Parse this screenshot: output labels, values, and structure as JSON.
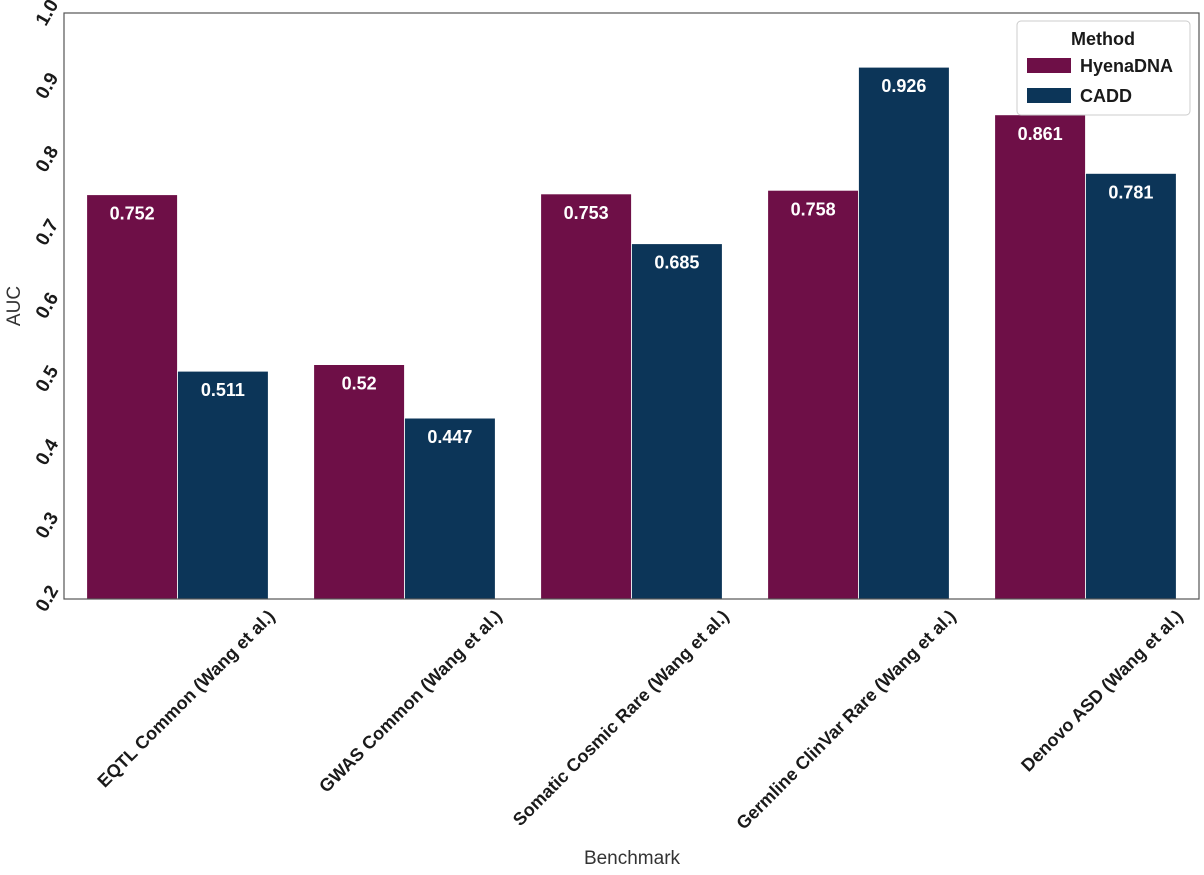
{
  "chart_data": {
    "type": "bar",
    "title": "",
    "xlabel": "Benchmark",
    "ylabel": "AUC",
    "ylim": [
      0.2,
      1.0
    ],
    "yticks": [
      "0.2",
      "0.3",
      "0.4",
      "0.5",
      "0.6",
      "0.7",
      "0.8",
      "0.9",
      "1.0"
    ],
    "categories": [
      "EQTL Common (Wang et al.)",
      "GWAS Common (Wang et al.)",
      "Somatic Cosmic Rare (Wang et al.)",
      "Germline ClinVar Rare (Wang et al.)",
      "Denovo ASD (Wang et al.)"
    ],
    "series": [
      {
        "name": "HyenaDNA",
        "color": "#6e0f47",
        "values": [
          0.752,
          0.52,
          0.753,
          0.758,
          0.861
        ],
        "labels": [
          "0.752",
          "0.52",
          "0.753",
          "0.758",
          "0.861"
        ]
      },
      {
        "name": "CADD",
        "color": "#0c3558",
        "values": [
          0.511,
          0.447,
          0.685,
          0.926,
          0.781
        ],
        "labels": [
          "0.511",
          "0.447",
          "0.685",
          "0.926",
          "0.781"
        ]
      }
    ],
    "legend": {
      "title": "Method",
      "position": "top-right"
    },
    "grid": false
  }
}
